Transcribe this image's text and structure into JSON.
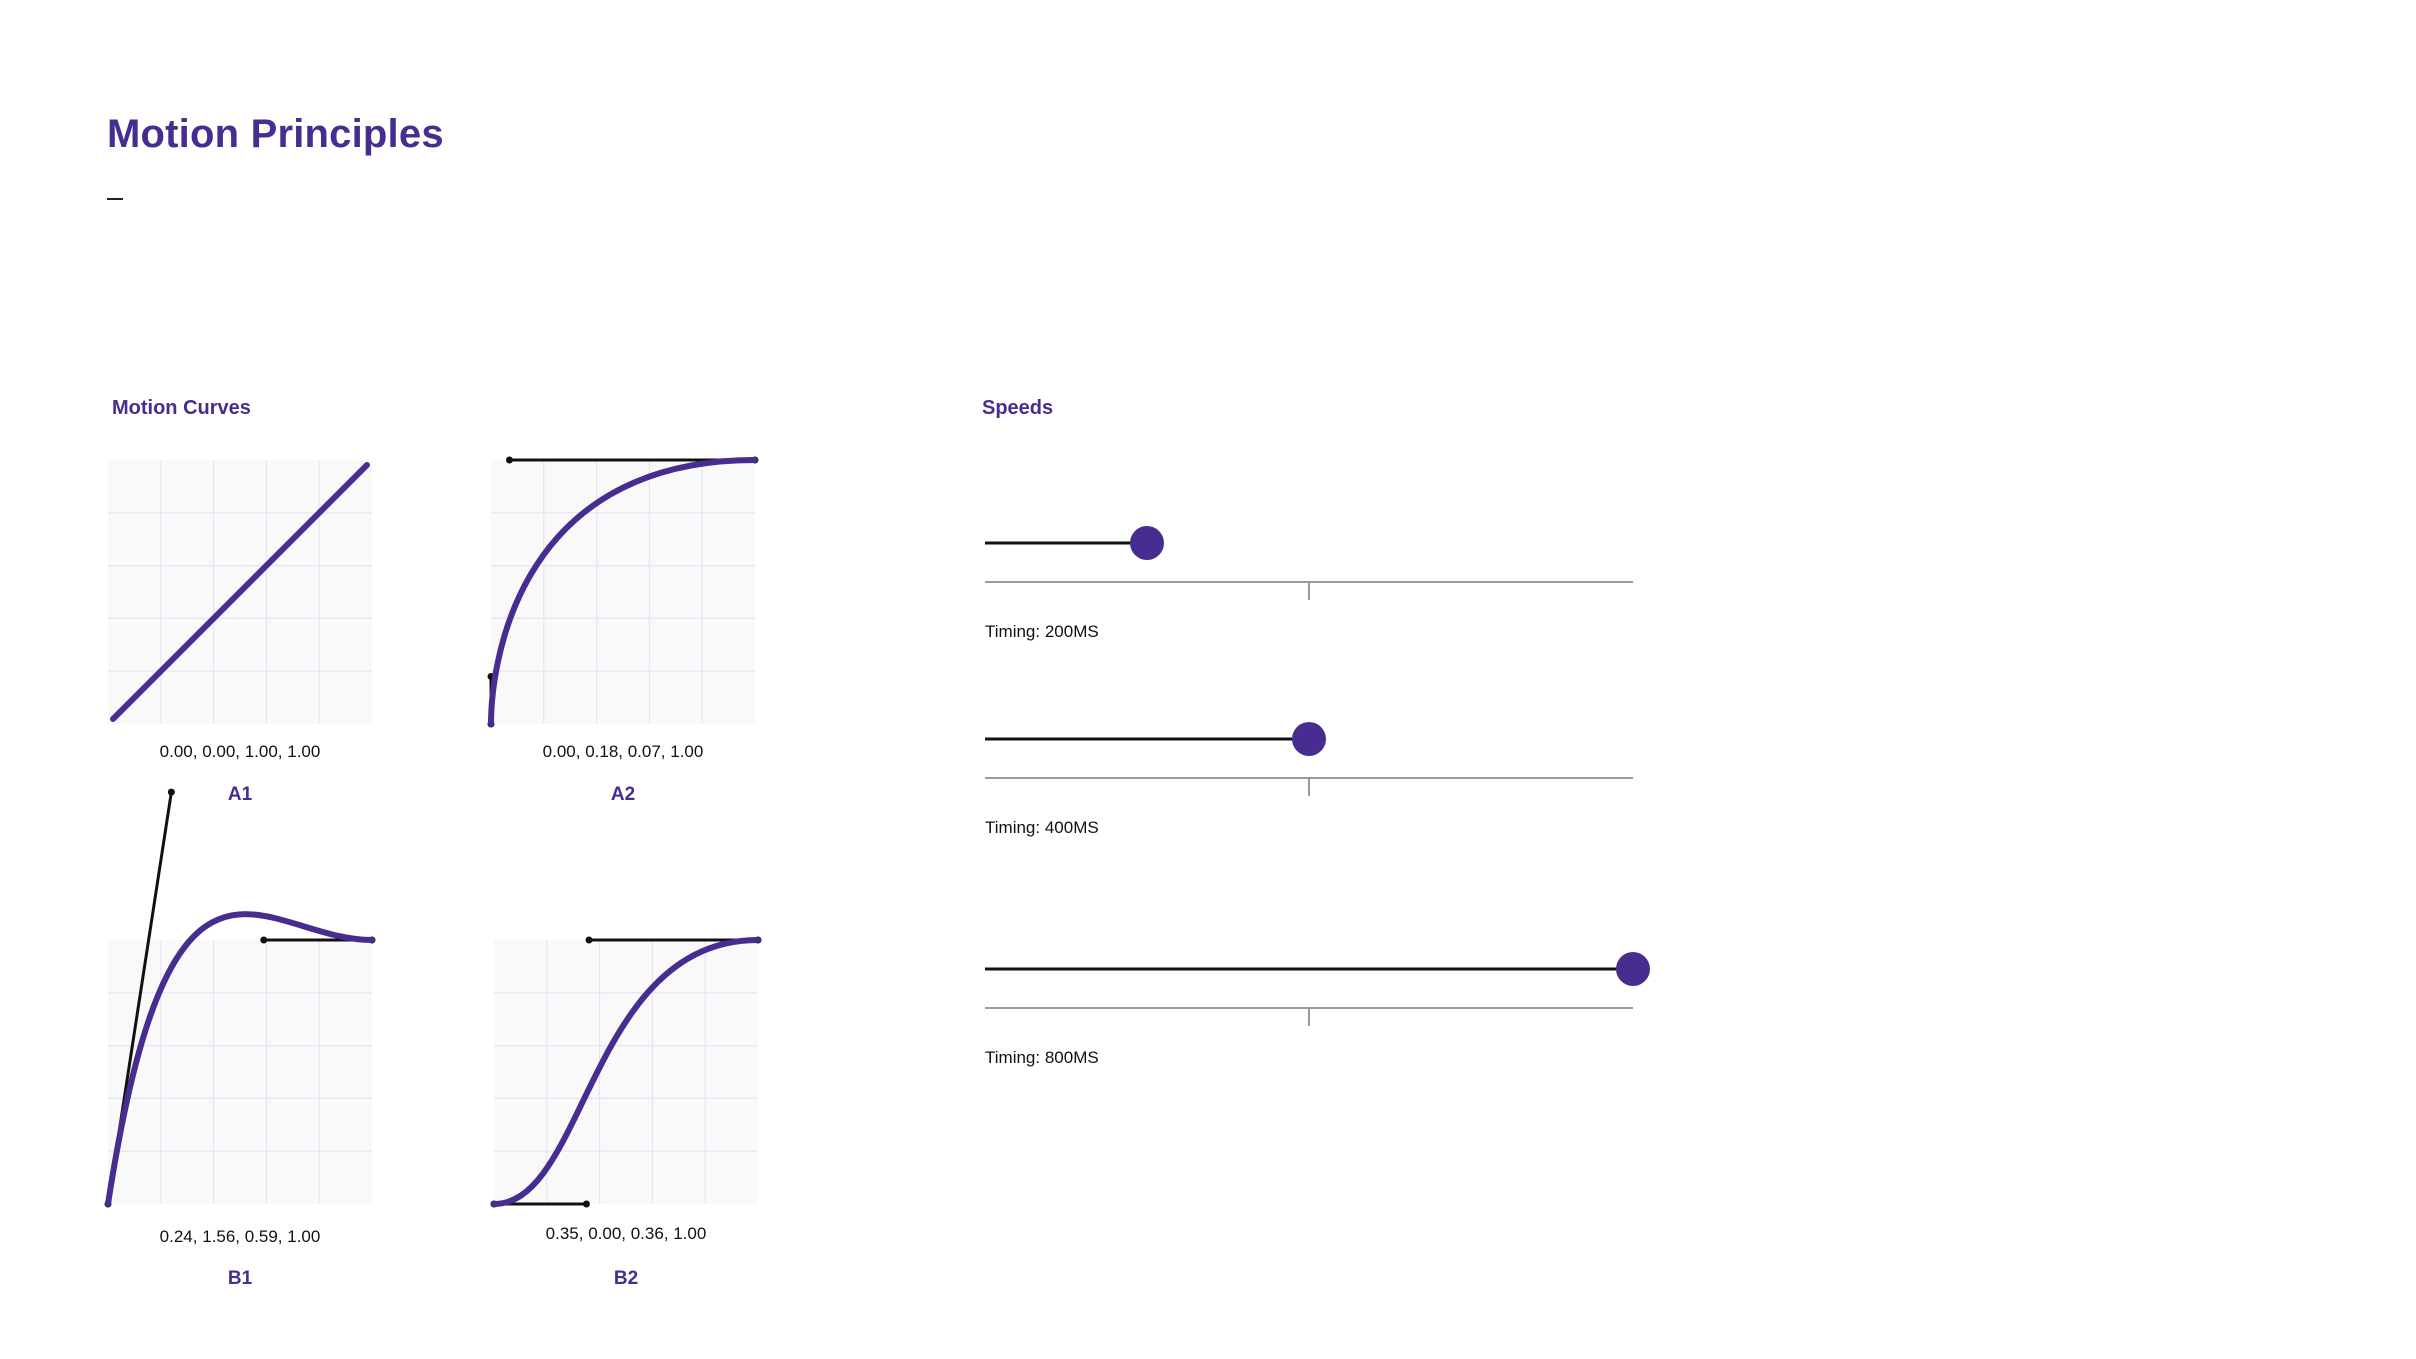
{
  "page": {
    "title": "Motion Principles"
  },
  "sections": {
    "curves_title": "Motion Curves",
    "speeds_title": "Speeds"
  },
  "colors": {
    "accent": "#472D8F",
    "grid": "#E6E3F4",
    "plot_bg": "#F9F9FA",
    "handle": "#111111",
    "track": "#9A9A9A"
  },
  "curves": [
    {
      "name": "A1",
      "values_label": "0.00, 0.00, 1.00, 1.00",
      "bezier": [
        0.0,
        0.0,
        1.0,
        1.0
      ]
    },
    {
      "name": "A2",
      "values_label": "0.00, 0.18, 0.07, 1.00",
      "bezier": [
        0.0,
        0.18,
        0.07,
        1.0
      ]
    },
    {
      "name": "B1",
      "values_label": "0.24, 1.56, 0.59, 1.00",
      "bezier": [
        0.24,
        1.56,
        0.59,
        1.0
      ]
    },
    {
      "name": "B2",
      "values_label": "0.35, 0.00, 0.36, 1.00",
      "bezier": [
        0.35,
        0.0,
        0.36,
        1.0
      ]
    }
  ],
  "speeds": [
    {
      "label": "Timing: 200MS",
      "timing_ms": 200,
      "progress": 0.25
    },
    {
      "label": "Timing: 400MS",
      "timing_ms": 400,
      "progress": 0.5
    },
    {
      "label": "Timing: 800MS",
      "timing_ms": 800,
      "progress": 1.0
    }
  ]
}
